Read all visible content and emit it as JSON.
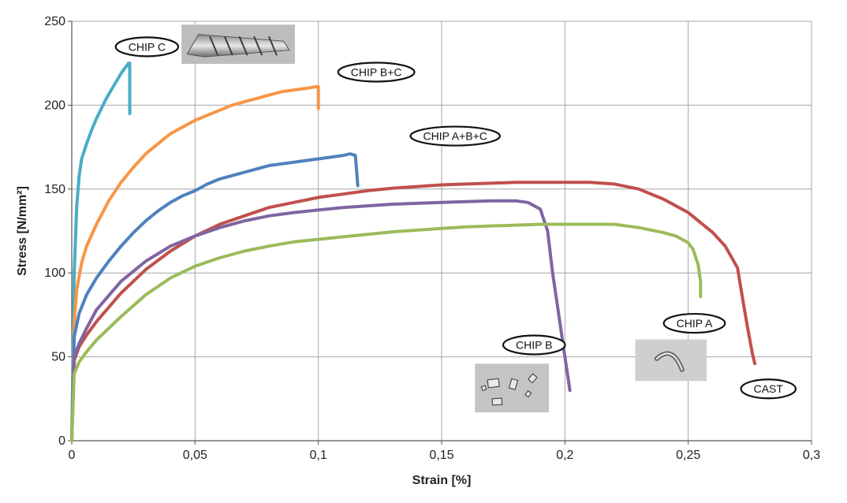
{
  "chart_data": {
    "type": "line",
    "title": "",
    "xlabel": "Strain [%]",
    "ylabel": "Stress [N/mm²]",
    "xlim": [
      0,
      0.3
    ],
    "ylim": [
      0,
      250
    ],
    "xticks": [
      0,
      0.05,
      0.1,
      0.15,
      0.2,
      0.25,
      0.3
    ],
    "yticks": [
      0,
      50,
      100,
      150,
      200,
      250
    ],
    "xtick_labels": [
      "0",
      "0,05",
      "0,1",
      "0,15",
      "0,2",
      "0,25",
      "0,3"
    ],
    "ytick_labels": [
      "0",
      "50",
      "100",
      "150",
      "200",
      "250"
    ],
    "grid": true,
    "legend": "none",
    "series": [
      {
        "name": "CHIP C",
        "color": "#4bacc6",
        "x": [
          0,
          0.001,
          0.002,
          0.003,
          0.004,
          0.006,
          0.008,
          0.01,
          0.012,
          0.014,
          0.016,
          0.018,
          0.02,
          0.022,
          0.023,
          0.0235,
          0.0235
        ],
        "y": [
          0,
          100,
          140,
          158,
          168,
          177,
          185,
          192,
          198,
          204,
          209,
          214,
          219,
          223,
          225,
          225,
          195
        ]
      },
      {
        "name": "CHIP B+C",
        "color": "#f79646",
        "x": [
          0,
          0.001,
          0.002,
          0.004,
          0.006,
          0.01,
          0.015,
          0.02,
          0.025,
          0.03,
          0.035,
          0.04,
          0.045,
          0.05,
          0.055,
          0.06,
          0.065,
          0.07,
          0.075,
          0.08,
          0.085,
          0.09,
          0.095,
          0.099,
          0.1,
          0.1
        ],
        "y": [
          0,
          70,
          90,
          106,
          116,
          129,
          143,
          154,
          163,
          171,
          177,
          183,
          187,
          191,
          194,
          197,
          200,
          202,
          204,
          206,
          208,
          209,
          210,
          211,
          211,
          198
        ]
      },
      {
        "name": "CHIP A+B+C",
        "color": "#4f81bd",
        "x": [
          0,
          0.001,
          0.003,
          0.006,
          0.01,
          0.015,
          0.02,
          0.025,
          0.03,
          0.035,
          0.04,
          0.045,
          0.05,
          0.055,
          0.06,
          0.065,
          0.07,
          0.075,
          0.08,
          0.085,
          0.09,
          0.095,
          0.1,
          0.105,
          0.11,
          0.113,
          0.115,
          0.116
        ],
        "y": [
          0,
          62,
          76,
          87,
          97,
          107,
          116,
          124,
          131,
          137,
          142,
          146,
          149,
          153,
          156,
          158,
          160,
          162,
          164,
          165,
          166,
          167,
          168,
          169,
          170,
          171,
          170,
          152
        ]
      },
      {
        "name": "CAST",
        "color": "#c0504d",
        "x": [
          0,
          0.001,
          0.003,
          0.006,
          0.01,
          0.02,
          0.03,
          0.04,
          0.05,
          0.06,
          0.07,
          0.08,
          0.09,
          0.1,
          0.11,
          0.12,
          0.13,
          0.14,
          0.15,
          0.16,
          0.17,
          0.18,
          0.19,
          0.2,
          0.21,
          0.22,
          0.23,
          0.24,
          0.25,
          0.26,
          0.265,
          0.27,
          0.272,
          0.274,
          0.276,
          0.277
        ],
        "y": [
          0,
          48,
          56,
          63,
          71,
          88,
          102,
          113,
          122,
          129,
          134,
          139,
          142,
          145,
          147,
          149,
          150.5,
          151.5,
          152.5,
          153,
          153.5,
          154,
          154,
          154,
          154,
          153,
          150,
          144,
          136,
          124,
          116,
          103,
          85,
          68,
          52,
          46
        ]
      },
      {
        "name": "CHIP B",
        "color": "#8064a2",
        "x": [
          0,
          0.001,
          0.003,
          0.006,
          0.01,
          0.02,
          0.03,
          0.04,
          0.05,
          0.06,
          0.07,
          0.08,
          0.09,
          0.1,
          0.11,
          0.12,
          0.13,
          0.14,
          0.15,
          0.16,
          0.17,
          0.18,
          0.185,
          0.19,
          0.193,
          0.195,
          0.197,
          0.199,
          0.2,
          0.201,
          0.202
        ],
        "y": [
          0,
          50,
          58,
          67,
          78,
          95,
          107,
          116,
          122,
          127,
          131,
          134,
          136,
          137.5,
          139,
          140,
          141,
          141.5,
          142,
          142.5,
          143,
          143,
          142,
          138,
          125,
          100,
          80,
          60,
          50,
          40,
          30
        ]
      },
      {
        "name": "CHIP A",
        "color": "#9bbb59",
        "x": [
          0,
          0.001,
          0.003,
          0.006,
          0.01,
          0.02,
          0.03,
          0.04,
          0.05,
          0.06,
          0.07,
          0.08,
          0.09,
          0.1,
          0.11,
          0.12,
          0.13,
          0.14,
          0.15,
          0.16,
          0.17,
          0.18,
          0.19,
          0.2,
          0.21,
          0.22,
          0.23,
          0.24,
          0.245,
          0.25,
          0.252,
          0.254,
          0.255,
          0.255
        ],
        "y": [
          0,
          40,
          47,
          53,
          60,
          74,
          87,
          97,
          104,
          109,
          113,
          116,
          118.5,
          120,
          121.5,
          123,
          124.5,
          125.5,
          126.5,
          127.5,
          128,
          128.5,
          129,
          129,
          129,
          129,
          127,
          124,
          122,
          118,
          114,
          105,
          95,
          86
        ]
      }
    ],
    "annotations": [
      {
        "name": "CHIP C",
        "text": "CHIP C",
        "x": 0.0305,
        "y": 234.8
      },
      {
        "name": "CHIP B+C",
        "text": "CHIP B+C",
        "x": 0.1235,
        "y": 219.7
      },
      {
        "name": "CHIP A+B+C",
        "text": "CHIP A+B+C",
        "x": 0.1555,
        "y": 181.6
      },
      {
        "name": "CHIP B",
        "text": "CHIP B",
        "x": 0.1875,
        "y": 57.1
      },
      {
        "name": "CHIP A",
        "text": "CHIP A",
        "x": 0.2525,
        "y": 70.0
      },
      {
        "name": "CAST",
        "text": "CAST",
        "x": 0.2825,
        "y": 30.9
      }
    ],
    "photos": [
      {
        "name": "chip-c-photo",
        "x0": 0.0445,
        "x1": 0.0905,
        "y0": 224.6,
        "y1": 248.0
      },
      {
        "name": "chip-b-photo",
        "x0": 0.1635,
        "x1": 0.1935,
        "y0": 16.9,
        "y1": 45.9
      },
      {
        "name": "chip-a-photo",
        "x0": 0.2285,
        "x1": 0.2575,
        "y0": 35.6,
        "y1": 60.4
      }
    ]
  }
}
